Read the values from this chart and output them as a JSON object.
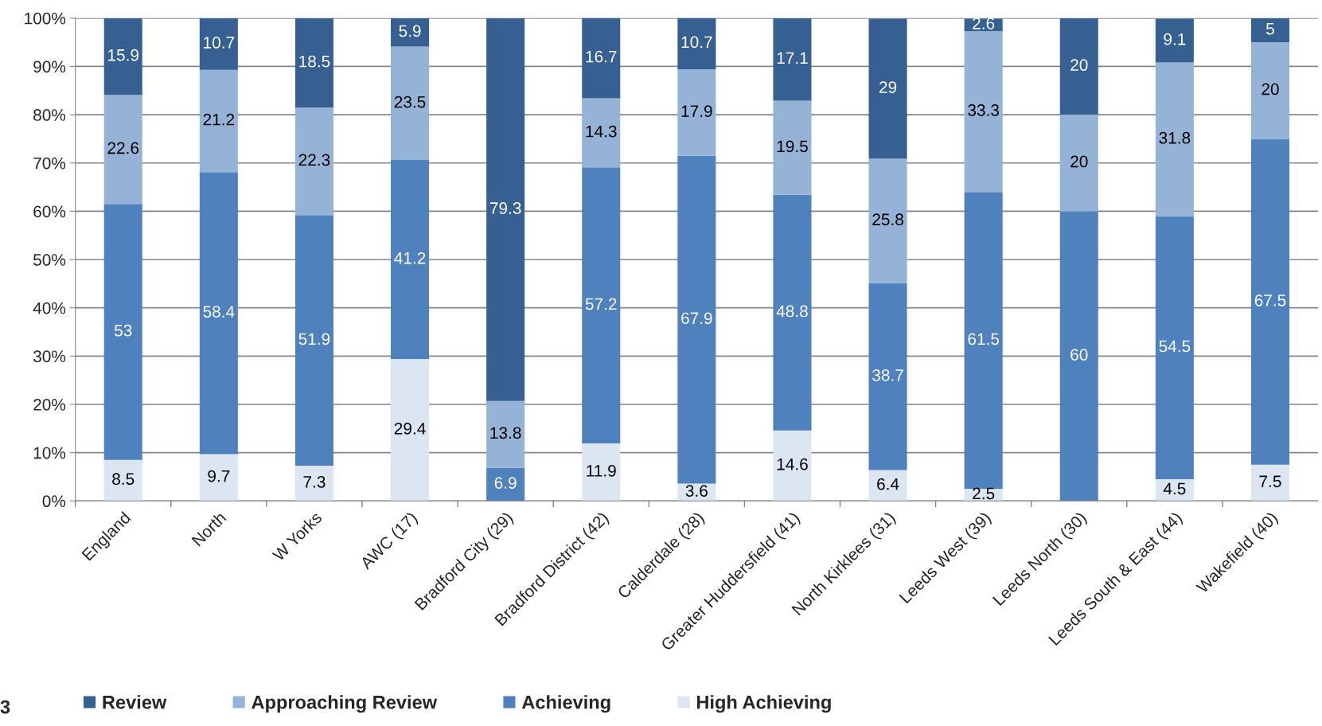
{
  "chart_data": {
    "type": "bar",
    "stacked": true,
    "categories": [
      "England",
      "North",
      "W Yorks",
      "AWC (17)",
      "Bradford City (29)",
      "Bradford District (42)",
      "Calderdale (28)",
      "Greater Huddersfield (41)",
      "North Kirklees (31)",
      "Leeds West (39)",
      "Leeds North (30)",
      "Leeds South & East (44)",
      "Wakefield (40)"
    ],
    "series": [
      {
        "name": "High Achieving",
        "color": "#dce6f2",
        "values": [
          8.5,
          9.7,
          7.3,
          29.4,
          null,
          11.9,
          3.6,
          14.6,
          6.4,
          2.5,
          null,
          4.5,
          7.5
        ]
      },
      {
        "name": "Achieving",
        "color": "#4f81bd",
        "values": [
          53,
          58.4,
          51.9,
          41.2,
          6.9,
          57.2,
          67.9,
          48.8,
          38.7,
          61.5,
          60,
          54.5,
          67.5
        ]
      },
      {
        "name": "Approaching Review",
        "color": "#95b3d7",
        "values": [
          22.6,
          21.2,
          22.3,
          23.5,
          13.8,
          14.3,
          17.9,
          19.5,
          25.8,
          33.3,
          20,
          31.8,
          20
        ]
      },
      {
        "name": "Review",
        "color": "#376092",
        "values": [
          15.9,
          10.7,
          18.5,
          5.9,
          79.3,
          16.7,
          10.7,
          17.1,
          29,
          2.6,
          20,
          9.1,
          5
        ]
      }
    ],
    "ylim": [
      0,
      100
    ],
    "yticks": [
      {
        "value": 0,
        "label": "0%"
      },
      {
        "value": 10,
        "label": "10%"
      },
      {
        "value": 20,
        "label": "20%"
      },
      {
        "value": 30,
        "label": "30%"
      },
      {
        "value": 40,
        "label": "40%"
      },
      {
        "value": 50,
        "label": "50%"
      },
      {
        "value": 60,
        "label": "60%"
      },
      {
        "value": 70,
        "label": "70%"
      },
      {
        "value": 80,
        "label": "80%"
      },
      {
        "value": 90,
        "label": "90%"
      },
      {
        "value": 100,
        "label": "100%"
      }
    ],
    "grid": "y",
    "legend": "bottom",
    "data_labels": true,
    "annotations": [
      "3"
    ]
  }
}
